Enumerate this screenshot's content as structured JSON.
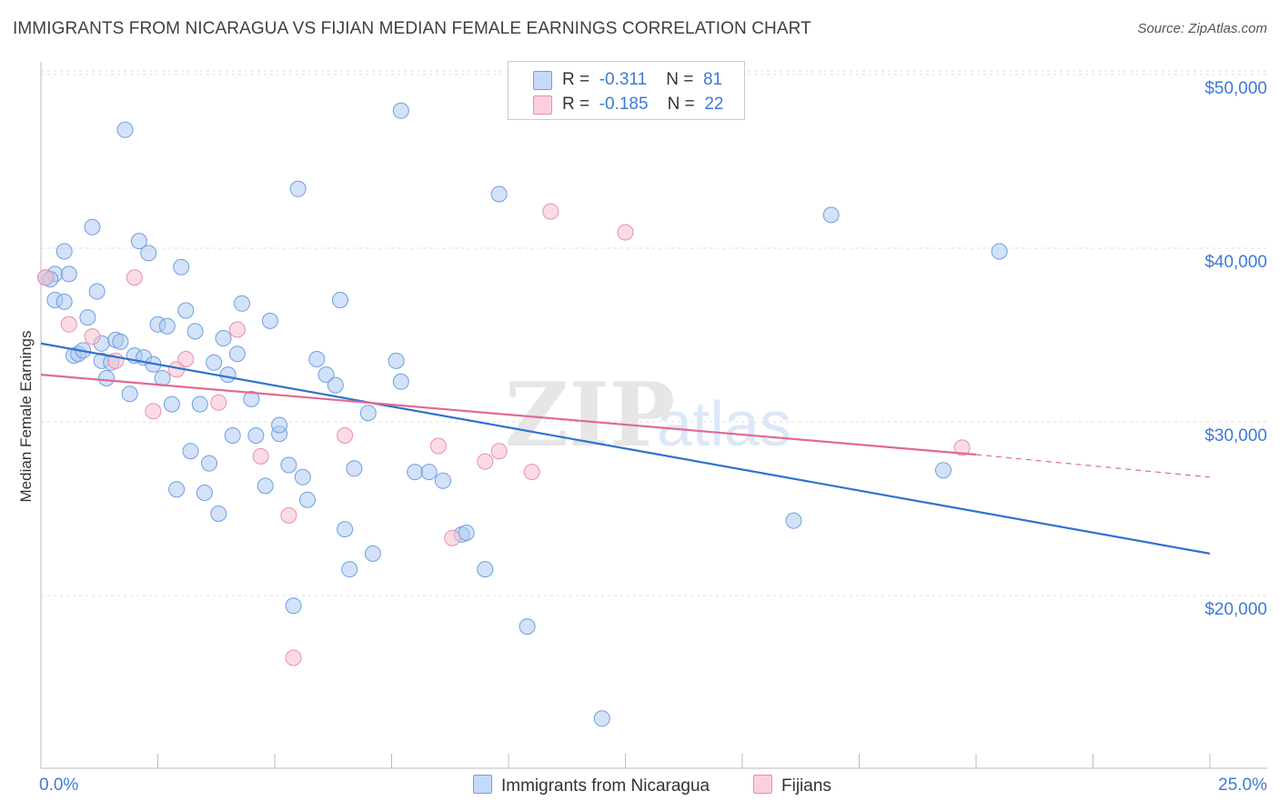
{
  "title": "IMMIGRANTS FROM NICARAGUA VS FIJIAN MEDIAN FEMALE EARNINGS CORRELATION CHART",
  "source": "Source: ZipAtlas.com",
  "watermark": {
    "zip": "ZIP",
    "atlas": "atlas"
  },
  "colors": {
    "nicaragua_fill": "#aecbf2",
    "nicaragua_stroke": "#6f9fe0",
    "nicaragua_line": "#2f72d0",
    "fijian_fill": "#f7bfd0",
    "fijian_stroke": "#e98fac",
    "fijian_line": "#e06a93",
    "axis_text": "#3d7ad6",
    "grid": "#dddddd"
  },
  "legend": {
    "rows": [
      {
        "r_label": "R =",
        "r_value": "-0.311",
        "n_label": "N =",
        "n_value": "81"
      },
      {
        "r_label": "R =",
        "r_value": "-0.185",
        "n_label": "N =",
        "n_value": "22"
      }
    ]
  },
  "bottom_legend": {
    "nicaragua": "Immigrants from Nicaragua",
    "fijians": "Fijians"
  },
  "chart_data": {
    "type": "scatter",
    "title": "IMMIGRANTS FROM NICARAGUA VS FIJIAN MEDIAN FEMALE EARNINGS CORRELATION CHART",
    "xlabel": "",
    "ylabel": "Median Female Earnings",
    "xlim": [
      0,
      25
    ],
    "ylim": [
      10000,
      52000
    ],
    "x_tick_labels": [
      "0.0%",
      "25.0%"
    ],
    "y_ticks": [
      20000,
      30000,
      40000,
      50000
    ],
    "y_tick_labels": [
      "$20,000",
      "$30,000",
      "$40,000",
      "$50,000"
    ],
    "legend_position": "top-center",
    "grid": true,
    "series": [
      {
        "name": "Immigrants from Nicaragua",
        "points": [
          [
            0.1,
            39100
          ],
          [
            0.3,
            39300
          ],
          [
            0.3,
            37800
          ],
          [
            0.5,
            37700
          ],
          [
            0.5,
            40600
          ],
          [
            0.6,
            39300
          ],
          [
            0.7,
            34600
          ],
          [
            0.8,
            34700
          ],
          [
            0.9,
            34900
          ],
          [
            1.0,
            36800
          ],
          [
            1.1,
            42000
          ],
          [
            1.2,
            38300
          ],
          [
            1.3,
            34300
          ],
          [
            1.3,
            35300
          ],
          [
            1.4,
            33300
          ],
          [
            1.5,
            34200
          ],
          [
            1.6,
            35500
          ],
          [
            1.7,
            35400
          ],
          [
            1.8,
            47600
          ],
          [
            1.9,
            32400
          ],
          [
            2.0,
            34600
          ],
          [
            2.1,
            41200
          ],
          [
            2.2,
            34500
          ],
          [
            2.3,
            40500
          ],
          [
            2.4,
            34100
          ],
          [
            2.5,
            36400
          ],
          [
            2.6,
            33300
          ],
          [
            2.7,
            36300
          ],
          [
            2.8,
            31800
          ],
          [
            2.9,
            26900
          ],
          [
            3.0,
            39700
          ],
          [
            3.1,
            37200
          ],
          [
            3.2,
            29100
          ],
          [
            3.3,
            36000
          ],
          [
            3.4,
            31800
          ],
          [
            3.5,
            26700
          ],
          [
            3.6,
            28400
          ],
          [
            3.7,
            34200
          ],
          [
            3.8,
            25500
          ],
          [
            3.9,
            35600
          ],
          [
            4.0,
            33500
          ],
          [
            4.2,
            34700
          ],
          [
            4.3,
            37600
          ],
          [
            4.5,
            32100
          ],
          [
            4.1,
            30000
          ],
          [
            4.6,
            30000
          ],
          [
            4.8,
            27100
          ],
          [
            4.9,
            36600
          ],
          [
            5.1,
            30100
          ],
          [
            5.1,
            30600
          ],
          [
            5.3,
            28300
          ],
          [
            5.4,
            20200
          ],
          [
            5.5,
            44200
          ],
          [
            5.6,
            27600
          ],
          [
            5.7,
            26300
          ],
          [
            5.9,
            34400
          ],
          [
            6.1,
            33500
          ],
          [
            6.3,
            32900
          ],
          [
            6.4,
            37800
          ],
          [
            6.5,
            24600
          ],
          [
            6.6,
            22300
          ],
          [
            6.7,
            28100
          ],
          [
            7.0,
            31300
          ],
          [
            7.1,
            23200
          ],
          [
            7.6,
            34300
          ],
          [
            7.7,
            33100
          ],
          [
            7.7,
            48700
          ],
          [
            8.0,
            27900
          ],
          [
            8.3,
            27900
          ],
          [
            8.6,
            27400
          ],
          [
            9.0,
            24300
          ],
          [
            9.1,
            24400
          ],
          [
            9.5,
            22300
          ],
          [
            9.8,
            43900
          ],
          [
            10.4,
            19000
          ],
          [
            12.0,
            13700
          ],
          [
            16.1,
            25100
          ],
          [
            16.9,
            42700
          ],
          [
            19.3,
            28000
          ],
          [
            20.5,
            40600
          ],
          [
            0.2,
            39000
          ]
        ],
        "trend": {
          "x": [
            0.0,
            25.0
          ],
          "y": [
            35300,
            23200
          ]
        }
      },
      {
        "name": "Fijians",
        "points": [
          [
            0.1,
            39100
          ],
          [
            0.6,
            36400
          ],
          [
            1.1,
            35700
          ],
          [
            1.6,
            34300
          ],
          [
            2.0,
            39100
          ],
          [
            2.4,
            31400
          ],
          [
            2.9,
            33800
          ],
          [
            3.1,
            34400
          ],
          [
            3.8,
            31900
          ],
          [
            4.2,
            36100
          ],
          [
            4.7,
            28800
          ],
          [
            5.3,
            25400
          ],
          [
            5.4,
            17200
          ],
          [
            6.5,
            30000
          ],
          [
            8.5,
            29400
          ],
          [
            8.8,
            24100
          ],
          [
            9.5,
            28500
          ],
          [
            9.8,
            29100
          ],
          [
            10.5,
            27900
          ],
          [
            10.9,
            42900
          ],
          [
            12.5,
            41700
          ],
          [
            19.7,
            29300
          ]
        ],
        "trend": {
          "x": [
            0.0,
            20.0
          ],
          "y": [
            33500,
            28900
          ]
        },
        "trend_dashed": {
          "x": [
            20.0,
            25.0
          ],
          "y": [
            28900,
            27600
          ]
        }
      }
    ]
  }
}
